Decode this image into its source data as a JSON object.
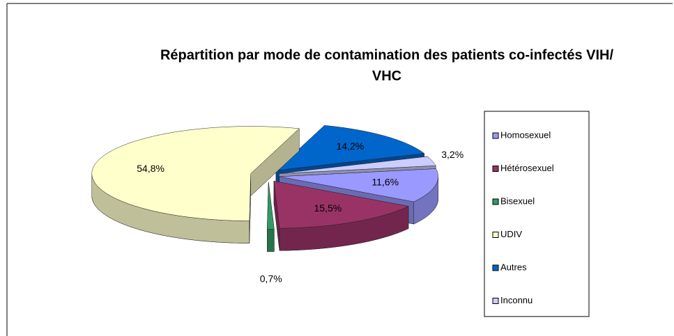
{
  "chart_data": {
    "type": "pie3d",
    "title": [
      "Répartition par mode de contamination des patients co-infectés VIH/",
      "VHC"
    ],
    "categories": [
      "Homosexuel",
      "Hétérosexuel",
      "Bisexuel",
      "UDIV",
      "Autres",
      "Inconnu"
    ],
    "values": [
      11.6,
      15.5,
      0.7,
      54.8,
      14.2,
      3.2
    ],
    "value_labels": [
      "11,6%",
      "15,5%",
      "0,7%",
      "54,8%",
      "14,2%",
      "3,2%"
    ],
    "colors": [
      "#9999ff",
      "#993366",
      "#339966",
      "#ffffcc",
      "#0066cc",
      "#ccccff"
    ],
    "legend": "right"
  }
}
